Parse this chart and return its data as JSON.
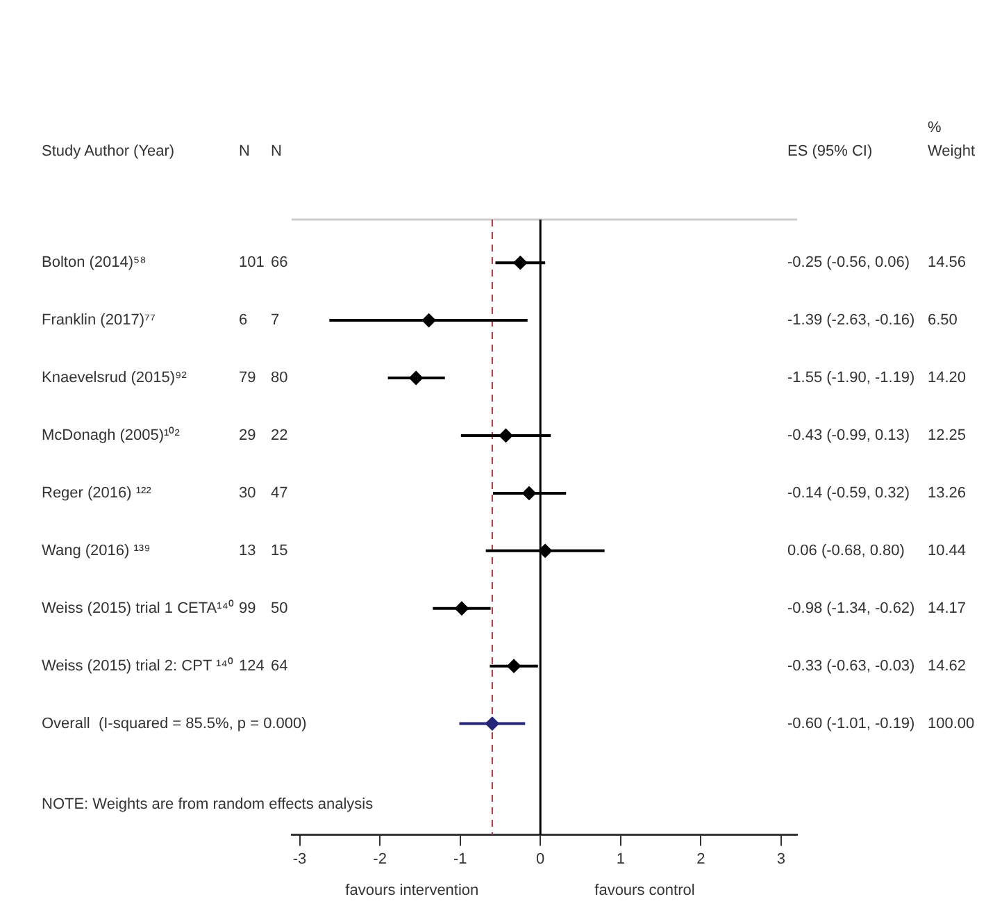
{
  "chart_data": {
    "type": "scatter",
    "orientation": "horizontal",
    "ylabel": "Study Author (Year)",
    "categories": [
      "Bolton (2014)⁵⁸",
      "Franklin (2017)⁷⁷",
      "Knaevelsrud (2015)⁹²",
      "McDonagh (2005)¹⁰²",
      "Reger (2016) ¹²²",
      "Wang (2016) ¹³⁹",
      "Weiss (2015) trial 1 CETA¹⁴⁰",
      "Weiss (2015) trial 2: CPT ¹⁴⁰",
      "Overall  (I-squared = 85.5%, p = 0.000)"
    ],
    "series": [
      {
        "colors": [
          "#000000",
          "#000000",
          "#000000",
          "#000000",
          "#000000",
          "#000000",
          "#000000",
          "#000000",
          "#24247a"
        ],
        "marker": "diamond",
        "values": [
          -0.25,
          -1.39,
          -1.55,
          -0.43,
          -0.14,
          0.06,
          -0.98,
          -0.33,
          -0.6
        ],
        "errors": [
          [
            -0.56,
            0.06
          ],
          [
            -2.63,
            -0.16
          ],
          [
            -1.9,
            -1.19
          ],
          [
            -0.99,
            0.13
          ],
          [
            -0.59,
            0.32
          ],
          [
            -0.68,
            0.8
          ],
          [
            -1.34,
            -0.62
          ],
          [
            -0.63,
            -0.03
          ],
          [
            -1.01,
            -0.19
          ]
        ],
        "value_labels": [
          "-0.25 (-0.56, 0.06)",
          "-1.39 (-2.63, -0.16)",
          "-1.55 (-1.90, -1.19)",
          "-0.43 (-0.99, 0.13)",
          "-0.14 (-0.59, 0.32)",
          "0.06 (-0.68, 0.80)",
          "-0.98 (-1.34, -0.62)",
          "-0.33 (-0.63, -0.03)",
          "-0.60 (-1.01, -0.19)"
        ]
      }
    ],
    "xlim": [
      -3.1,
      3.2
    ],
    "xticks": [
      -3,
      -2,
      -1,
      0,
      1,
      2,
      3
    ],
    "grid": false,
    "legend": false,
    "ref_lines": [
      {
        "axis": "x",
        "value": 0,
        "color": "#000000",
        "line_style": "solid"
      },
      {
        "axis": "x",
        "value": -0.6,
        "color": "#b0303a",
        "line_style": "dashed"
      }
    ],
    "annotations": [
      "N",
      "N",
      "ES (95% CI)",
      "%",
      "Weight",
      "101",
      "66",
      "14.56",
      "6",
      "7",
      "6.50",
      "79",
      "80",
      "14.20",
      "29",
      "22",
      "12.25",
      "30",
      "47",
      "13.26",
      "13",
      "15",
      "10.44",
      "99",
      "50",
      "14.17",
      "124",
      "64",
      "14.62",
      "100.00",
      "favours intervention",
      "favours control",
      "NOTE: Weights are from random effects analysis"
    ]
  }
}
